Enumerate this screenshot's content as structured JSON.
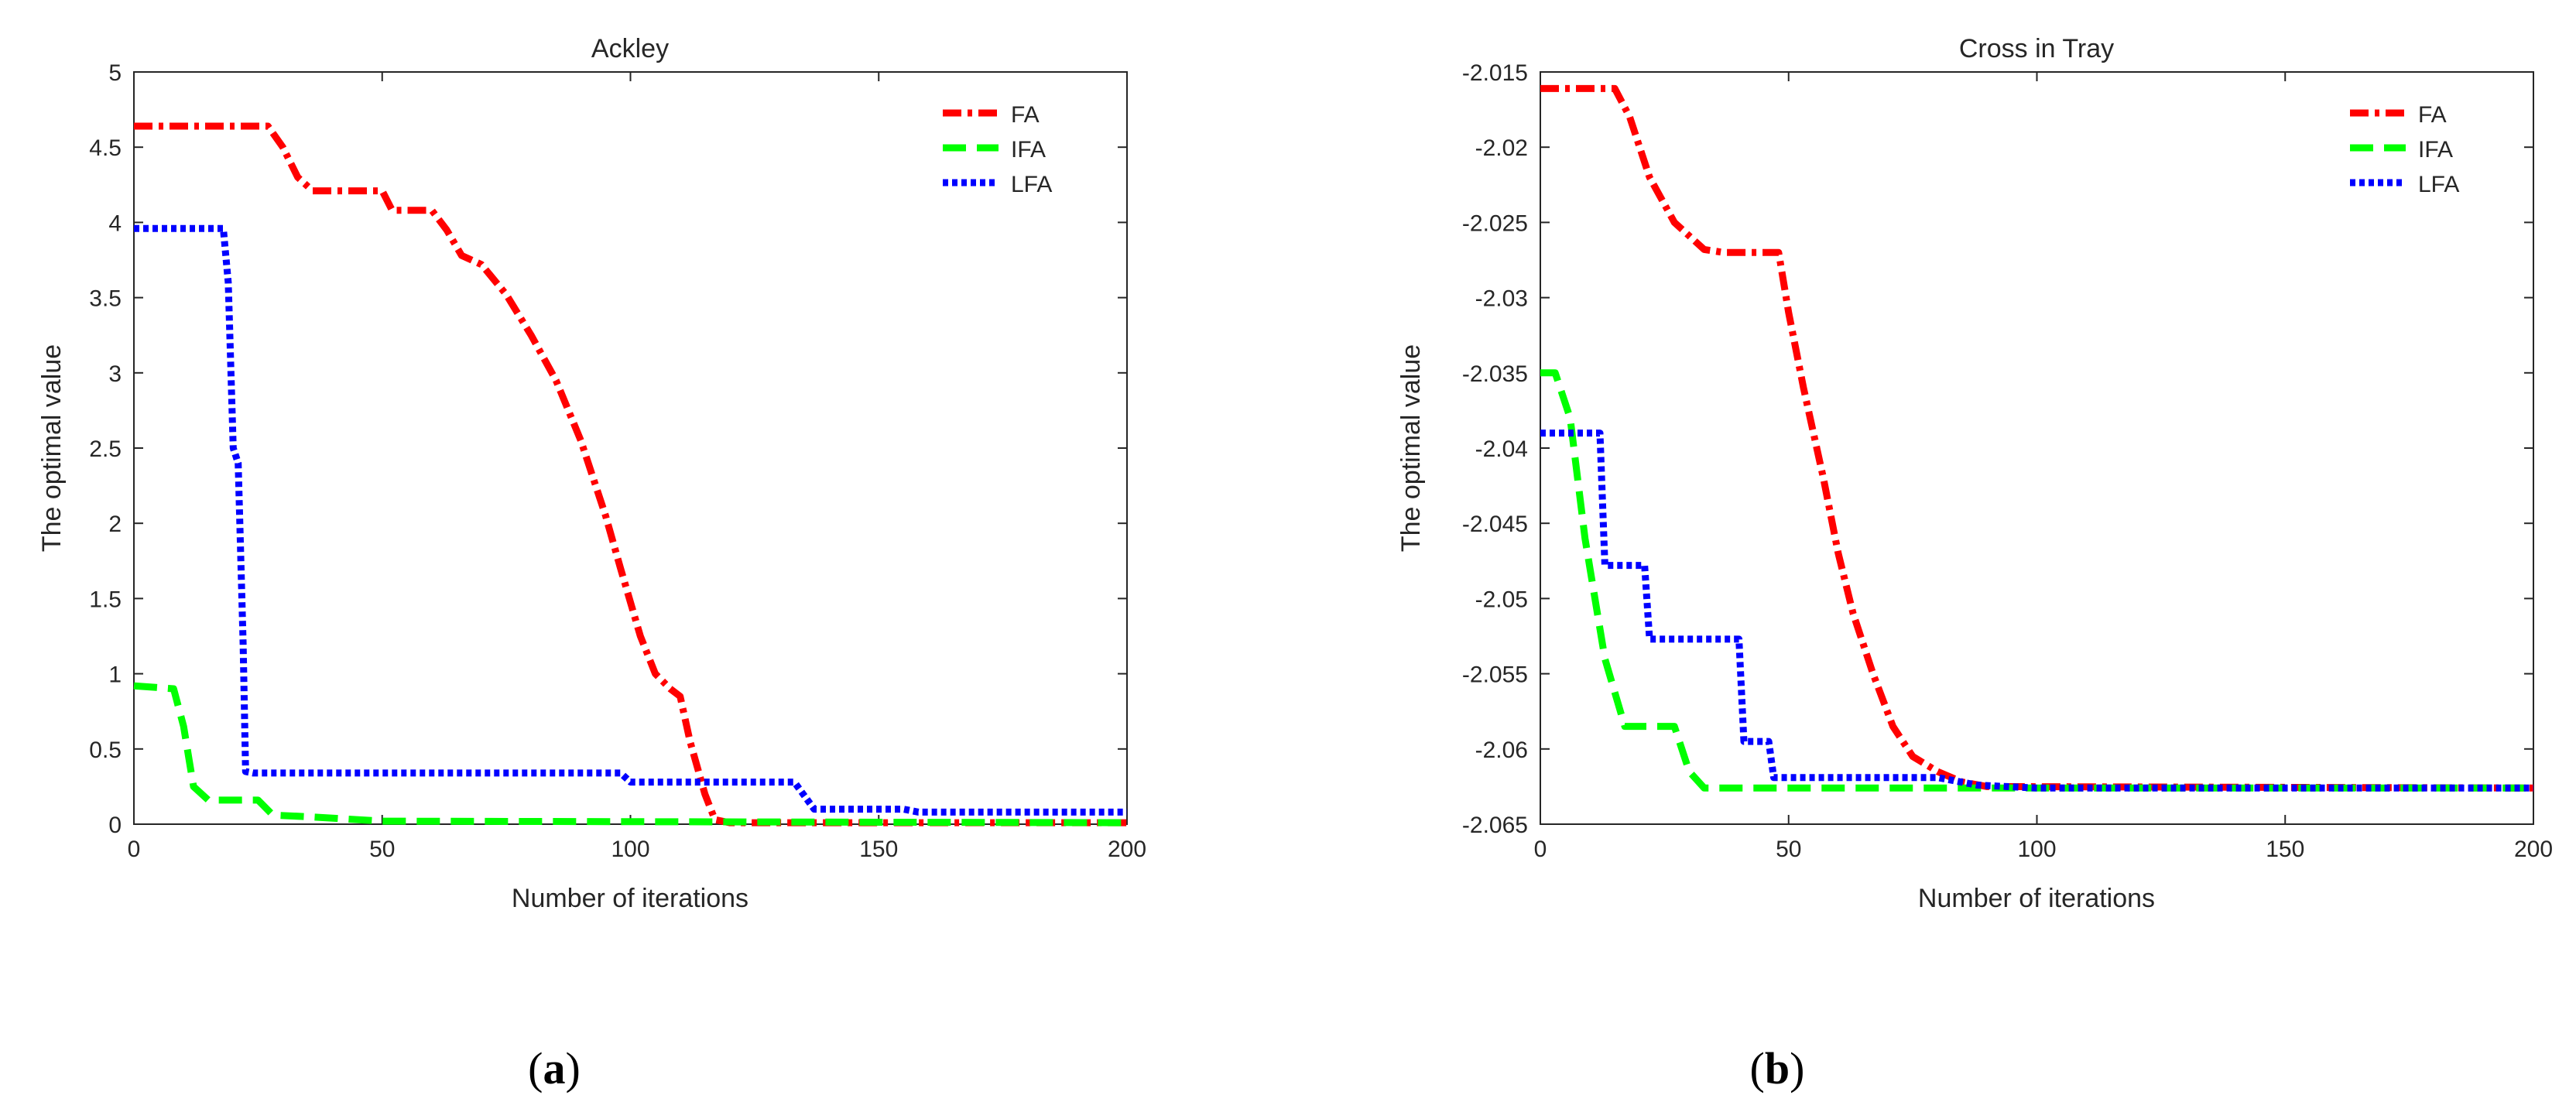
{
  "chart_data": [
    {
      "type": "line",
      "panel_label": "a",
      "title": "Ackley",
      "xlabel": "Number of iterations",
      "ylabel": "The optimal value",
      "xlim": [
        0,
        200
      ],
      "ylim": [
        0,
        5
      ],
      "xticks": [
        0,
        50,
        100,
        150,
        200
      ],
      "xtick_labels": [
        "0",
        "50",
        "100",
        "150",
        "200"
      ],
      "yticks": [
        0,
        0.5,
        1,
        1.5,
        2,
        2.5,
        3,
        3.5,
        4,
        4.5,
        5
      ],
      "ytick_labels": [
        "0",
        "0.5",
        "1",
        "1.5",
        "2",
        "2.5",
        "3",
        "3.5",
        "4",
        "4.5",
        "5"
      ],
      "grid": false,
      "legend_position": "top-right",
      "series": [
        {
          "name": "FA",
          "color": "#ff0000",
          "style": "dashdot",
          "points": [
            [
              0,
              4.64
            ],
            [
              27,
              4.64
            ],
            [
              30,
              4.5
            ],
            [
              33,
              4.3
            ],
            [
              36,
              4.21
            ],
            [
              50,
              4.21
            ],
            [
              52,
              4.08
            ],
            [
              60,
              4.08
            ],
            [
              63,
              3.95
            ],
            [
              66,
              3.78
            ],
            [
              70,
              3.72
            ],
            [
              75,
              3.52
            ],
            [
              80,
              3.25
            ],
            [
              85,
              2.95
            ],
            [
              90,
              2.55
            ],
            [
              95,
              2.05
            ],
            [
              98,
              1.7
            ],
            [
              102,
              1.25
            ],
            [
              105,
              1.0
            ],
            [
              108,
              0.9
            ],
            [
              110,
              0.85
            ],
            [
              112,
              0.55
            ],
            [
              115,
              0.2
            ],
            [
              117,
              0.03
            ],
            [
              120,
              0.01
            ],
            [
              200,
              0.01
            ]
          ]
        },
        {
          "name": "IFA",
          "color": "#00ff00",
          "style": "dashed",
          "points": [
            [
              0,
              0.92
            ],
            [
              8,
              0.9
            ],
            [
              10,
              0.65
            ],
            [
              12,
              0.25
            ],
            [
              15,
              0.16
            ],
            [
              25,
              0.16
            ],
            [
              28,
              0.06
            ],
            [
              35,
              0.05
            ],
            [
              50,
              0.02
            ],
            [
              200,
              0.01
            ]
          ]
        },
        {
          "name": "LFA",
          "color": "#0000ff",
          "style": "dotted",
          "points": [
            [
              0,
              3.96
            ],
            [
              18,
              3.96
            ],
            [
              19,
              3.6
            ],
            [
              20,
              2.5
            ],
            [
              21,
              2.4
            ],
            [
              22,
              1.2
            ],
            [
              22.5,
              0.35
            ],
            [
              24,
              0.34
            ],
            [
              98,
              0.34
            ],
            [
              100,
              0.28
            ],
            [
              133,
              0.28
            ],
            [
              137,
              0.1
            ],
            [
              155,
              0.1
            ],
            [
              158,
              0.08
            ],
            [
              200,
              0.08
            ]
          ]
        }
      ]
    },
    {
      "type": "line",
      "panel_label": "b",
      "title": "Cross in Tray",
      "xlabel": "Number of iterations",
      "ylabel": "The optimal value",
      "xlim": [
        0,
        200
      ],
      "ylim": [
        -2.065,
        -2.015
      ],
      "xticks": [
        0,
        50,
        100,
        150,
        200
      ],
      "xtick_labels": [
        "0",
        "50",
        "100",
        "150",
        "200"
      ],
      "yticks": [
        -2.065,
        -2.06,
        -2.055,
        -2.05,
        -2.045,
        -2.04,
        -2.035,
        -2.03,
        -2.025,
        -2.02,
        -2.015
      ],
      "ytick_labels": [
        "-2.065",
        "-2.06",
        "-2.055",
        "-2.05",
        "-2.045",
        "-2.04",
        "-2.035",
        "-2.03",
        "-2.025",
        "-2.02",
        "-2.015"
      ],
      "grid": false,
      "legend_position": "top-right",
      "series": [
        {
          "name": "FA",
          "color": "#ff0000",
          "style": "dashdot",
          "points": [
            [
              0,
              -2.0161
            ],
            [
              15,
              -2.0161
            ],
            [
              18,
              -2.018
            ],
            [
              22,
              -2.022
            ],
            [
              27,
              -2.025
            ],
            [
              33,
              -2.0268
            ],
            [
              37,
              -2.027
            ],
            [
              48,
              -2.027
            ],
            [
              50,
              -2.031
            ],
            [
              53,
              -2.036
            ],
            [
              57,
              -2.042
            ],
            [
              60,
              -2.047
            ],
            [
              63,
              -2.051
            ],
            [
              67,
              -2.055
            ],
            [
              71,
              -2.0585
            ],
            [
              75,
              -2.0605
            ],
            [
              80,
              -2.0615
            ],
            [
              85,
              -2.0622
            ],
            [
              90,
              -2.0625
            ],
            [
              200,
              -2.0626
            ]
          ]
        },
        {
          "name": "IFA",
          "color": "#00ff00",
          "style": "dashed",
          "points": [
            [
              0,
              -2.035
            ],
            [
              3,
              -2.035
            ],
            [
              6,
              -2.038
            ],
            [
              9,
              -2.046
            ],
            [
              13,
              -2.054
            ],
            [
              17,
              -2.0585
            ],
            [
              27,
              -2.0585
            ],
            [
              30,
              -2.0615
            ],
            [
              33,
              -2.0626
            ],
            [
              200,
              -2.0626
            ]
          ]
        },
        {
          "name": "LFA",
          "color": "#0000ff",
          "style": "dotted",
          "points": [
            [
              0,
              -2.039
            ],
            [
              12,
              -2.039
            ],
            [
              13,
              -2.0478
            ],
            [
              21,
              -2.0478
            ],
            [
              22,
              -2.0527
            ],
            [
              40,
              -2.0527
            ],
            [
              41,
              -2.0595
            ],
            [
              46,
              -2.0595
            ],
            [
              47,
              -2.0619
            ],
            [
              80,
              -2.0619
            ],
            [
              88,
              -2.0624
            ],
            [
              100,
              -2.0626
            ],
            [
              200,
              -2.0626
            ]
          ]
        }
      ]
    }
  ]
}
